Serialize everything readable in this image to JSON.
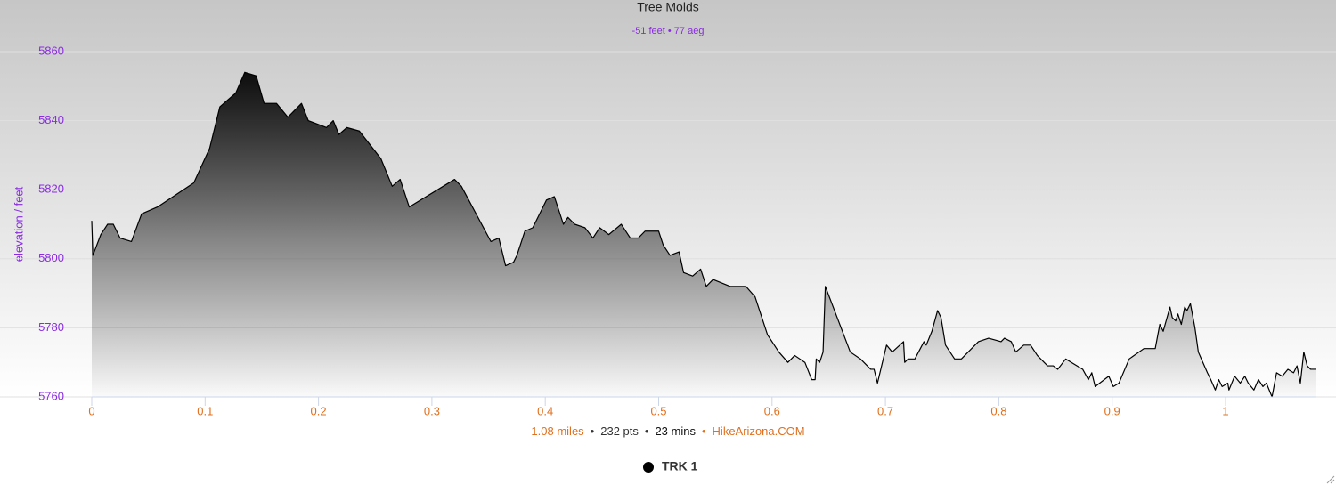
{
  "chart_data": {
    "type": "area",
    "title": "Tree Molds",
    "subtitle": "-51 feet • 77 aeg",
    "y_label": "elevation / feet",
    "x": [
      0,
      0.001,
      0.008,
      0.014,
      0.019,
      0.025,
      0.035,
      0.044,
      0.058,
      0.09,
      0.104,
      0.113,
      0.127,
      0.135,
      0.145,
      0.152,
      0.157,
      0.163,
      0.173,
      0.185,
      0.191,
      0.207,
      0.213,
      0.218,
      0.225,
      0.236,
      0.255,
      0.265,
      0.272,
      0.28,
      0.32,
      0.326,
      0.352,
      0.359,
      0.365,
      0.372,
      0.375,
      0.382,
      0.389,
      0.395,
      0.401,
      0.408,
      0.416,
      0.42,
      0.426,
      0.435,
      0.442,
      0.448,
      0.456,
      0.467,
      0.475,
      0.482,
      0.488,
      0.5,
      0.504,
      0.51,
      0.518,
      0.522,
      0.53,
      0.537,
      0.542,
      0.548,
      0.563,
      0.577,
      0.585,
      0.596,
      0.606,
      0.614,
      0.62,
      0.629,
      0.635,
      0.638,
      0.639,
      0.642,
      0.645,
      0.647,
      0.669,
      0.678,
      0.687,
      0.69,
      0.693,
      0.701,
      0.706,
      0.716,
      0.717,
      0.72,
      0.726,
      0.734,
      0.736,
      0.741,
      0.746,
      0.749,
      0.753,
      0.761,
      0.767,
      0.782,
      0.791,
      0.802,
      0.805,
      0.811,
      0.815,
      0.822,
      0.828,
      0.834,
      0.843,
      0.848,
      0.852,
      0.859,
      0.864,
      0.874,
      0.879,
      0.882,
      0.885,
      0.897,
      0.901,
      0.906,
      0.915,
      0.928,
      0.934,
      0.938,
      0.942,
      0.945,
      0.951,
      0.953,
      0.956,
      0.958,
      0.961,
      0.964,
      0.966,
      0.969,
      0.973,
      0.976,
      0.98,
      0.984,
      0.987,
      0.991,
      0.994,
      0.997,
      1.002,
      1.003,
      1.008,
      1.013,
      1.017,
      1.02,
      1.025,
      1.029,
      1.033,
      1.036,
      1.041,
      1.045,
      1.05,
      1.055,
      1.06,
      1.063,
      1.066,
      1.069,
      1.072,
      1.075,
      1.08
    ],
    "series": [
      {
        "name": "TRK 1",
        "color": "#000000",
        "values": [
          5811,
          5801,
          5807,
          5810,
          5810,
          5806,
          5805,
          5813,
          5815,
          5822,
          5832,
          5844,
          5848,
          5854,
          5853,
          5845,
          5845,
          5845,
          5841,
          5845,
          5840,
          5838,
          5840,
          5836,
          5838,
          5837,
          5829,
          5821,
          5823,
          5815,
          5823,
          5821,
          5805,
          5806,
          5798,
          5799,
          5801,
          5808,
          5809,
          5813,
          5817,
          5818,
          5810,
          5812,
          5810,
          5809,
          5806,
          5809,
          5807,
          5810,
          5806,
          5806,
          5808,
          5808,
          5804,
          5801,
          5802,
          5796,
          5795,
          5797,
          5792,
          5794,
          5792,
          5792,
          5789,
          5778,
          5773,
          5770,
          5772,
          5770,
          5765,
          5765,
          5771,
          5770,
          5773,
          5792,
          5773,
          5771,
          5768,
          5768,
          5764,
          5775,
          5773,
          5776,
          5770,
          5771,
          5771,
          5776,
          5775,
          5779,
          5785,
          5783,
          5775,
          5771,
          5771,
          5776,
          5777,
          5776,
          5777,
          5776,
          5773,
          5775,
          5775,
          5772,
          5769,
          5769,
          5768,
          5771,
          5770,
          5768,
          5765,
          5767,
          5763,
          5766,
          5763,
          5764,
          5771,
          5774,
          5774,
          5774,
          5781,
          5779,
          5786,
          5783,
          5782,
          5784,
          5781,
          5786,
          5785,
          5787,
          5780,
          5773,
          5770,
          5767,
          5765,
          5762,
          5765,
          5763,
          5764,
          5762,
          5766,
          5764,
          5766,
          5764,
          5762,
          5765,
          5763,
          5764,
          5760,
          5767,
          5766,
          5768,
          5767,
          5769,
          5764,
          5773,
          5769,
          5768,
          5768
        ]
      }
    ],
    "xlim": [
      0,
      1.08
    ],
    "ylim": [
      5760,
      5860
    ],
    "xticks": [
      0,
      0.1,
      0.2,
      0.3,
      0.4,
      0.5,
      0.6,
      0.7,
      0.8,
      0.9,
      1
    ],
    "yticks": [
      5760,
      5780,
      5800,
      5820,
      5840,
      5860
    ],
    "grid": true,
    "legend": "bottom",
    "footer": [
      {
        "text": "1.08 miles",
        "color": "#e0701e"
      },
      {
        "text": "•",
        "color": "#333333"
      },
      {
        "text": "232 pts",
        "color": "#333333"
      },
      {
        "text": "•",
        "color": "#333333"
      },
      {
        "text": "23 mins",
        "color": "#111111"
      },
      {
        "text": "•",
        "color": "#e0701e"
      },
      {
        "text": "HikeArizona.COM",
        "color": "#e0701e"
      }
    ]
  }
}
